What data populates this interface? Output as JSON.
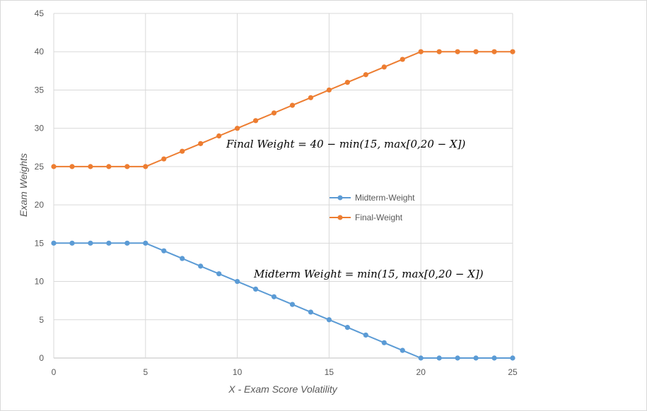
{
  "chart_data": {
    "type": "line",
    "title": "",
    "xlabel": "X - Exam Score Volatility",
    "ylabel": "Exam Weights",
    "xlim": [
      0,
      25
    ],
    "ylim": [
      0,
      45
    ],
    "x_ticks": [
      0,
      5,
      10,
      15,
      20,
      25
    ],
    "y_ticks": [
      0,
      5,
      10,
      15,
      20,
      25,
      30,
      35,
      40,
      45
    ],
    "grid": true,
    "legend_position": "center-right",
    "x": [
      0,
      1,
      2,
      3,
      4,
      5,
      6,
      7,
      8,
      9,
      10,
      11,
      12,
      13,
      14,
      15,
      16,
      17,
      18,
      19,
      20,
      21,
      22,
      23,
      24,
      25
    ],
    "series": [
      {
        "name": "Midterm-Weight",
        "color": "#5b9bd5",
        "values": [
          15,
          15,
          15,
          15,
          15,
          15,
          14,
          13,
          12,
          11,
          10,
          9,
          8,
          7,
          6,
          5,
          4,
          3,
          2,
          1,
          0,
          0,
          0,
          0,
          0,
          0
        ]
      },
      {
        "name": "Final-Weight",
        "color": "#ed7d31",
        "values": [
          25,
          25,
          25,
          25,
          25,
          25,
          26,
          27,
          28,
          29,
          30,
          31,
          32,
          33,
          34,
          35,
          36,
          37,
          38,
          39,
          40,
          40,
          40,
          40,
          40,
          40
        ]
      }
    ],
    "annotations": [
      {
        "text": "Final Weight = 40 − min(15, max[0,20 − X])",
        "at": [
          9.5,
          28.5
        ]
      },
      {
        "text": "Midterm Weight = min(15, max[0,20 − X])",
        "at": [
          11,
          11.2
        ]
      }
    ]
  }
}
